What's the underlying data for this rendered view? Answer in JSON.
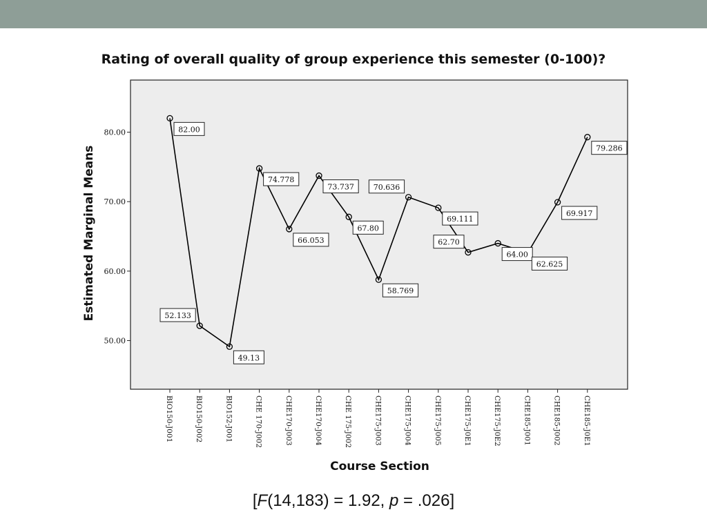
{
  "slide": {
    "caption_prefix": "[",
    "caption_f": "F",
    "caption_df": "(14,183) = 1.92, ",
    "caption_p": "p",
    "caption_pval": " = .026]",
    "colors": {
      "top_bar": "#8e9e97",
      "plot_bg": "#ededed",
      "line": "#000000"
    }
  },
  "chart_data": {
    "type": "line",
    "title": "Rating of overall quality of group experience this semester (0-100)?",
    "xlabel": "Course Section",
    "ylabel": "Estimated Marginal Means",
    "ylim": [
      43.0,
      87.5
    ],
    "yticks": [
      50,
      60,
      70,
      80
    ],
    "ytick_labels": [
      "50.00",
      "60.00",
      "70.00",
      "80.00"
    ],
    "categories": [
      "BIO150-J001",
      "BIO150-J002",
      "BIO152-J001",
      "CHE 170-J002",
      "CHE170-J003",
      "CHE170-J004",
      "CHE 175-J002",
      "CHE175-J003",
      "CHE175-J004",
      "CHE175-J005",
      "CHE175-J0E1",
      "CHE175-J0E2",
      "CHE185-J001",
      "CHE185-J002",
      "CHE185-J0E1"
    ],
    "values": [
      82.0,
      52.133,
      49.13,
      74.778,
      66.053,
      73.737,
      67.8,
      58.769,
      70.636,
      69.111,
      62.7,
      64.0,
      62.625,
      69.917,
      79.286
    ],
    "value_labels": [
      "82.00",
      "52.133",
      "49.13",
      "74.778",
      "66.053",
      "73.737",
      "67.80",
      "58.769",
      "70.636",
      "69.111",
      "62.70",
      "64.00",
      "62.625",
      "69.917",
      "79.286"
    ],
    "label_side": [
      "right",
      "left",
      "right",
      "right",
      "right",
      "right",
      "right",
      "right",
      "left",
      "right",
      "left",
      "right",
      "right",
      "right",
      "right"
    ],
    "grid": false,
    "legend": "none"
  }
}
